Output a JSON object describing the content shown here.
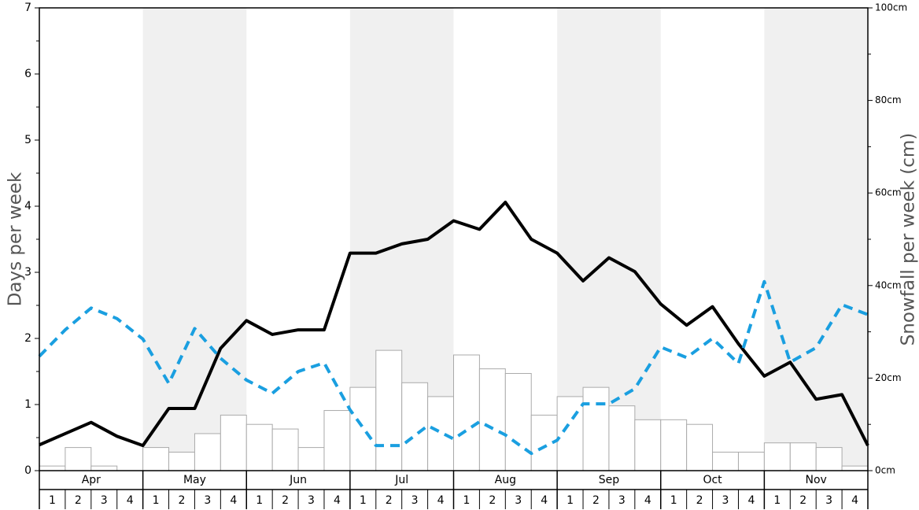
{
  "chart_data": {
    "type": "bar",
    "ylabel": "Days per week",
    "y2label": "Snowfall per week (cm)",
    "months": [
      "Apr",
      "May",
      "Jun",
      "Jul",
      "Aug",
      "Sep",
      "Oct",
      "Nov"
    ],
    "categories": [
      "1",
      "2",
      "3",
      "4",
      "1",
      "2",
      "3",
      "4",
      "1",
      "2",
      "3",
      "4",
      "1",
      "2",
      "3",
      "4",
      "1",
      "2",
      "3",
      "4",
      "1",
      "2",
      "3",
      "4",
      "1",
      "2",
      "3",
      "4",
      "1",
      "2",
      "3",
      "4"
    ],
    "ylim": [
      0,
      7
    ],
    "yticks": [
      0,
      1,
      2,
      3,
      4,
      5,
      6,
      7
    ],
    "y2lim": [
      0,
      100
    ],
    "y2ticks": [
      {
        "value": 0,
        "label": "0cm"
      },
      {
        "value": 20,
        "label": "20cm"
      },
      {
        "value": 40,
        "label": "40cm"
      },
      {
        "value": 60,
        "label": "60cm"
      },
      {
        "value": 80,
        "label": "80cm"
      },
      {
        "value": 100,
        "label": "100cm"
      }
    ],
    "series": [
      {
        "type": "bar",
        "axis": "y2",
        "color": "#ffffff",
        "values": [
          1,
          5,
          1,
          0,
          5,
          4,
          8,
          12,
          10,
          9,
          5,
          13,
          18,
          26,
          19,
          16,
          25,
          22,
          21,
          12,
          16,
          18,
          14,
          11,
          11,
          10,
          4,
          4,
          6,
          6,
          5,
          1
        ]
      },
      {
        "type": "line",
        "color": "#000000",
        "dash": false,
        "x": [
          0,
          1,
          2,
          3,
          4,
          5,
          6,
          7,
          8,
          9,
          10,
          11,
          12,
          13,
          14,
          15,
          16,
          17,
          18,
          19,
          20,
          21,
          22,
          23,
          24,
          25,
          26,
          27,
          28,
          29,
          30,
          31,
          32
        ],
        "values": [
          0.39,
          0.56,
          0.73,
          0.52,
          0.38,
          0.94,
          0.94,
          1.85,
          2.27,
          2.06,
          2.13,
          2.13,
          3.29,
          3.29,
          3.43,
          3.5,
          3.78,
          3.65,
          4.06,
          3.5,
          3.29,
          2.87,
          3.22,
          3.01,
          2.52,
          2.2,
          2.48,
          1.92,
          1.43,
          1.64,
          1.08,
          1.15,
          0.38
        ]
      },
      {
        "type": "line",
        "color": "#1a9fe0",
        "dash": true,
        "x": [
          0,
          1,
          2,
          3,
          4,
          5,
          6,
          7,
          8,
          9,
          10,
          11,
          12,
          13,
          14,
          15,
          16,
          17,
          18,
          19,
          20,
          21,
          22,
          23,
          24,
          25,
          26,
          27,
          28,
          29,
          30,
          31,
          32
        ],
        "values": [
          1.73,
          2.13,
          2.46,
          2.3,
          1.99,
          1.32,
          2.15,
          1.7,
          1.37,
          1.17,
          1.5,
          1.63,
          0.92,
          0.38,
          0.38,
          0.68,
          0.48,
          0.74,
          0.54,
          0.26,
          0.46,
          1.01,
          1.01,
          1.24,
          1.87,
          1.71,
          2.0,
          1.62,
          2.86,
          1.64,
          1.86,
          2.51,
          2.36
        ]
      }
    ]
  }
}
